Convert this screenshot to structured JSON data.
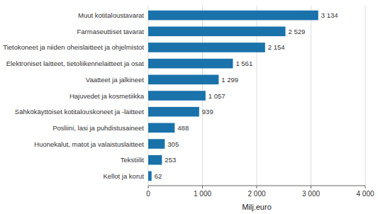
{
  "chart_data": {
    "type": "bar",
    "orientation": "horizontal",
    "categories": [
      "Kellot ja korut",
      "Tekstiilit",
      "Huonekalut, matot ja valaistuslaitteet",
      "Posliini, lasi ja puhdistusaineet",
      "Sähkökäyttöiset kotitalouskoneet ja -laitteet",
      "Hajuvedet ja kosmetiikka",
      "Vaatteet ja jalkineet",
      "Elektroniset laitteet, tietoliikennelaitteet ja osat",
      "Tietokoneet ja niiden oheislaitteet ja ohjelmistot",
      "Farmaseuttiset tavarat",
      "Muut kotitaloustavarat"
    ],
    "values": [
      62,
      253,
      305,
      488,
      939,
      1057,
      1299,
      1561,
      2154,
      2529,
      3134
    ],
    "value_labels": [
      "62",
      "253",
      "305",
      "488",
      "939",
      "1 057",
      "1 299",
      "1 561",
      "2 154",
      "2 529",
      "3 134"
    ],
    "data_labels": true,
    "color": "#1a72aa",
    "xlabel": "Milj.euro",
    "xlim": [
      0,
      4000
    ],
    "xticks": [
      0,
      {
        "value": 1000,
        "label": "1 000"
      },
      {
        "value": 2000,
        "label": "2 000"
      },
      {
        "value": 3000,
        "label": "3 000"
      },
      {
        "value": 4000,
        "label": "4 000"
      }
    ],
    "grid": true
  }
}
